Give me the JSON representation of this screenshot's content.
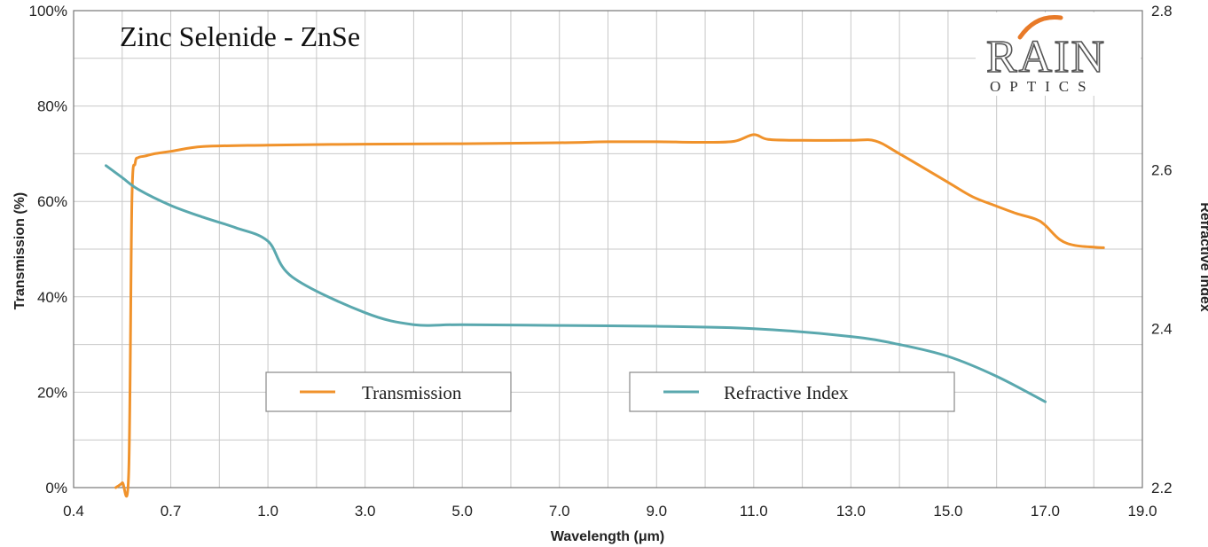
{
  "chart_data": {
    "type": "line",
    "title": "Zinc Selenide - ZnSe",
    "xlabel": "Wavelength (μm)",
    "ylabel": "Transmission (%)",
    "y2label": "Refractive Index",
    "x_ticks": [
      "0.4",
      "0.7",
      "1.0",
      "3.0",
      "5.0",
      "7.0",
      "9.0",
      "11.0",
      "13.0",
      "15.0",
      "17.0",
      "19.0"
    ],
    "x_tick_values": [
      0.4,
      0.7,
      1.0,
      3.0,
      5.0,
      7.0,
      9.0,
      11.0,
      13.0,
      15.0,
      17.0,
      19.0
    ],
    "y_ticks": [
      "0%",
      "20%",
      "40%",
      "60%",
      "80%",
      "100%"
    ],
    "y_tick_values": [
      0,
      20,
      40,
      60,
      80,
      100
    ],
    "y2_ticks": [
      "2.2",
      "2.4",
      "2.6",
      "2.8"
    ],
    "y2_tick_values": [
      2.2,
      2.4,
      2.6,
      2.8
    ],
    "ylim": [
      0,
      100
    ],
    "y2lim": [
      2.2,
      2.8
    ],
    "grid": true,
    "x_scale": "piecewise: equal spacing between labeled ticks",
    "legend_position": "bottom",
    "series": [
      {
        "name": "Transmission",
        "axis": "left",
        "color": "#f0922b",
        "x": [
          0.53,
          0.55,
          0.57,
          0.58,
          0.59,
          0.6,
          0.62,
          0.65,
          0.7,
          0.8,
          1.0,
          3.0,
          5.0,
          7.0,
          8.0,
          9.0,
          10.0,
          10.6,
          11.0,
          11.3,
          12.0,
          13.0,
          13.5,
          14.0,
          15.0,
          15.5,
          16.0,
          16.4,
          16.8,
          17.0,
          17.3,
          17.6,
          18.0,
          18.2
        ],
        "y": [
          0,
          1,
          3,
          60,
          68,
          69.2,
          69.5,
          70,
          70.5,
          71.5,
          71.8,
          72,
          72.1,
          72.3,
          72.5,
          72.5,
          72.4,
          72.6,
          74,
          73,
          72.8,
          72.8,
          72.7,
          70,
          64,
          61,
          59,
          57.5,
          56.3,
          55,
          52,
          50.8,
          50.4,
          50.3
        ]
      },
      {
        "name": "Refractive Index",
        "axis": "right",
        "color": "#5aa8ae",
        "x": [
          0.5,
          0.55,
          0.6,
          0.7,
          0.8,
          0.9,
          1.0,
          1.5,
          3.0,
          4.0,
          5.0,
          7.0,
          9.0,
          11.0,
          13.0,
          14.0,
          15.0,
          16.0,
          17.0
        ],
        "y": [
          2.605,
          2.59,
          2.575,
          2.555,
          2.54,
          2.527,
          2.51,
          2.465,
          2.42,
          2.405,
          2.405,
          2.404,
          2.403,
          2.4,
          2.39,
          2.38,
          2.365,
          2.34,
          2.308
        ]
      }
    ]
  },
  "logo": {
    "name": "RAIN",
    "subtitle": "OPTICS",
    "accent_color": "#e87a28"
  }
}
